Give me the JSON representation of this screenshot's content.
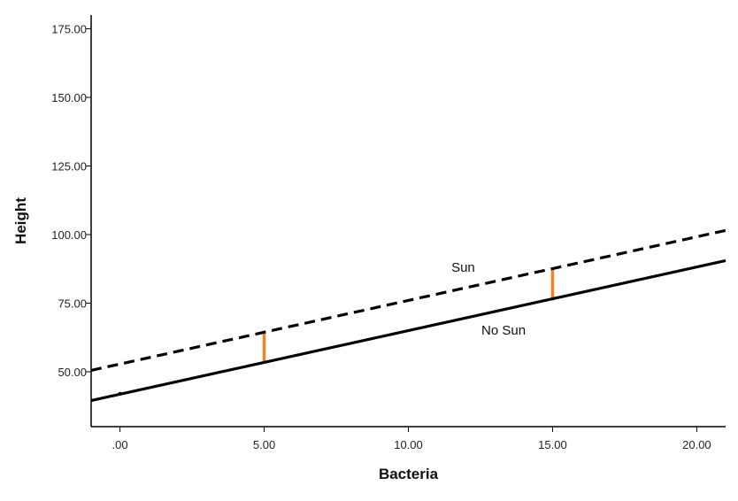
{
  "chart_data": {
    "type": "line",
    "xlabel": "Bacteria",
    "ylabel": "Height",
    "xlim": [
      -1,
      21
    ],
    "ylim": [
      30,
      180
    ],
    "x_ticks": [
      {
        "value": 0,
        "label": ".00"
      },
      {
        "value": 5,
        "label": "5.00"
      },
      {
        "value": 10,
        "label": "10.00"
      },
      {
        "value": 15,
        "label": "15.00"
      },
      {
        "value": 20,
        "label": "20.00"
      }
    ],
    "y_ticks": [
      {
        "value": 50,
        "label": "50.00"
      },
      {
        "value": 75,
        "label": "75.00"
      },
      {
        "value": 100,
        "label": "100.00"
      },
      {
        "value": 125,
        "label": "125.00"
      },
      {
        "value": 150,
        "label": "150.00"
      },
      {
        "value": 175,
        "label": "175.00"
      }
    ],
    "series": [
      {
        "name": "Sun",
        "style": "dashed",
        "color": "#000000",
        "x": [
          -1,
          21
        ],
        "y": [
          50.5,
          101.5
        ]
      },
      {
        "name": "No Sun",
        "style": "solid",
        "color": "#000000",
        "x": [
          -1,
          21
        ],
        "y": [
          39.5,
          90.5
        ]
      }
    ],
    "annotations": [
      {
        "type": "difference-segment",
        "x": 5,
        "y_from": 53,
        "y_to": 65,
        "color": "#f58220"
      },
      {
        "type": "difference-segment",
        "x": 15,
        "y_from": 76,
        "y_to": 88,
        "color": "#f58220"
      },
      {
        "type": "point",
        "x": 0,
        "y": 42,
        "color": "#000000"
      }
    ],
    "series_labels": [
      {
        "text": "Sun",
        "x": 11.9,
        "y": 86.5
      },
      {
        "text": "No Sun",
        "x": 13.3,
        "y": 63.5
      }
    ],
    "grid": false,
    "legend": "none"
  }
}
